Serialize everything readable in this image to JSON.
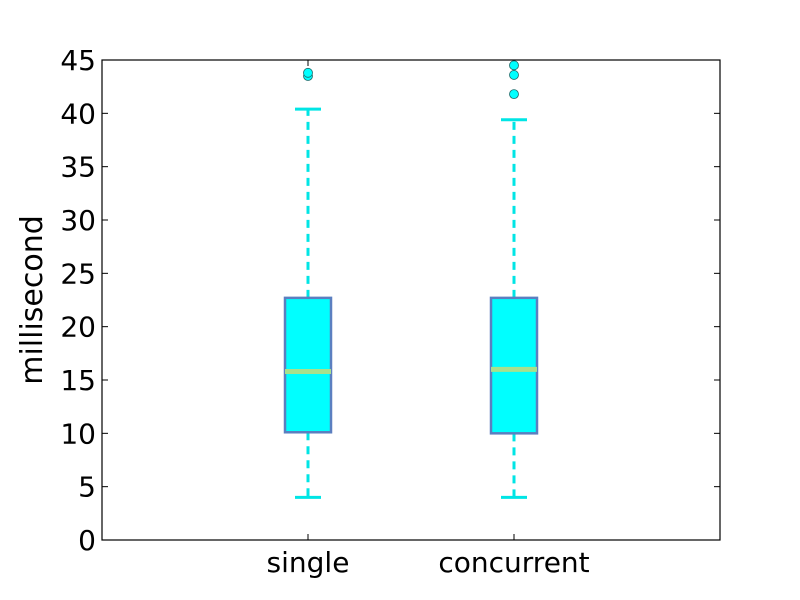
{
  "chart_data": {
    "type": "box",
    "title": "",
    "xlabel": "",
    "ylabel": "millisecond",
    "ylim": [
      0,
      45
    ],
    "yticks": [
      0,
      5,
      10,
      15,
      20,
      25,
      30,
      35,
      40,
      45
    ],
    "grid": false,
    "categories": [
      "single",
      "concurrent"
    ],
    "colors": {
      "box_fill": "#00ffff",
      "box_edge": "#5b7fc0",
      "median": "#a8e08c",
      "whisker": "#00e5e5",
      "flier": "#00ffff"
    },
    "boxes": [
      {
        "category": "single",
        "whisker_low": 4.0,
        "q1": 10.1,
        "median": 15.8,
        "q3": 22.7,
        "whisker_high": 40.4,
        "fliers": [
          43.5,
          43.8
        ]
      },
      {
        "category": "concurrent",
        "whisker_low": 4.0,
        "q1": 10.0,
        "median": 16.0,
        "q3": 22.7,
        "whisker_high": 39.4,
        "fliers": [
          41.8,
          43.6,
          44.5
        ]
      }
    ]
  }
}
